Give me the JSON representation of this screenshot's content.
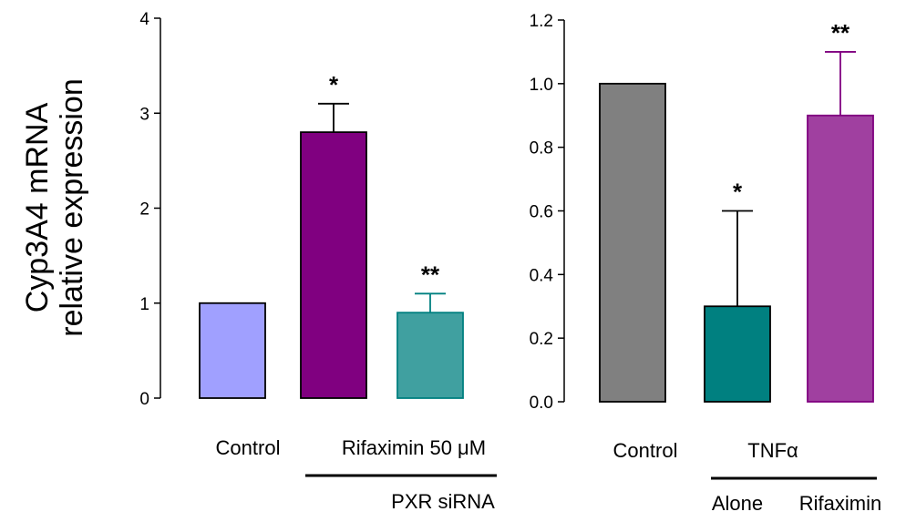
{
  "ylabel": {
    "line1": "Cyp3A4 mRNA",
    "line2": "relative expression"
  },
  "chart_data": [
    {
      "type": "bar",
      "ylabel": "Cyp3A4 mRNA relative expression",
      "ylim": [
        0,
        4
      ],
      "yticks": [
        "0",
        "1",
        "2",
        "3",
        "4"
      ],
      "categories": [
        "Control",
        "Rifaximin 50 μM",
        ""
      ],
      "values": [
        1.0,
        2.8,
        0.9
      ],
      "errors": [
        0,
        0.3,
        0.2
      ],
      "significance": [
        "",
        "*",
        "**"
      ],
      "colors": [
        "#a0a0ff",
        "#800080",
        "#40a0a0"
      ],
      "edge_colors": [
        "#000000",
        "#000000",
        "#008080"
      ],
      "group_labels": [
        "PXR siRNA"
      ]
    },
    {
      "type": "bar",
      "ylabel": "Cyp3A4 mRNA relative expression",
      "ylim": [
        0,
        1.2
      ],
      "yticks": [
        "0.0",
        "0.2",
        "0.4",
        "0.6",
        "0.8",
        "1.0",
        "1.2"
      ],
      "categories": [
        "Control",
        "Alone",
        "Rifaximin"
      ],
      "values": [
        1.0,
        0.3,
        0.9
      ],
      "errors": [
        0,
        0.3,
        0.2
      ],
      "significance": [
        "",
        "*",
        "**"
      ],
      "colors": [
        "#808080",
        "#008080",
        "#a040a0"
      ],
      "edge_colors": [
        "#000000",
        "#000000",
        "#800080"
      ],
      "group_labels": [
        "TNFα"
      ]
    }
  ]
}
